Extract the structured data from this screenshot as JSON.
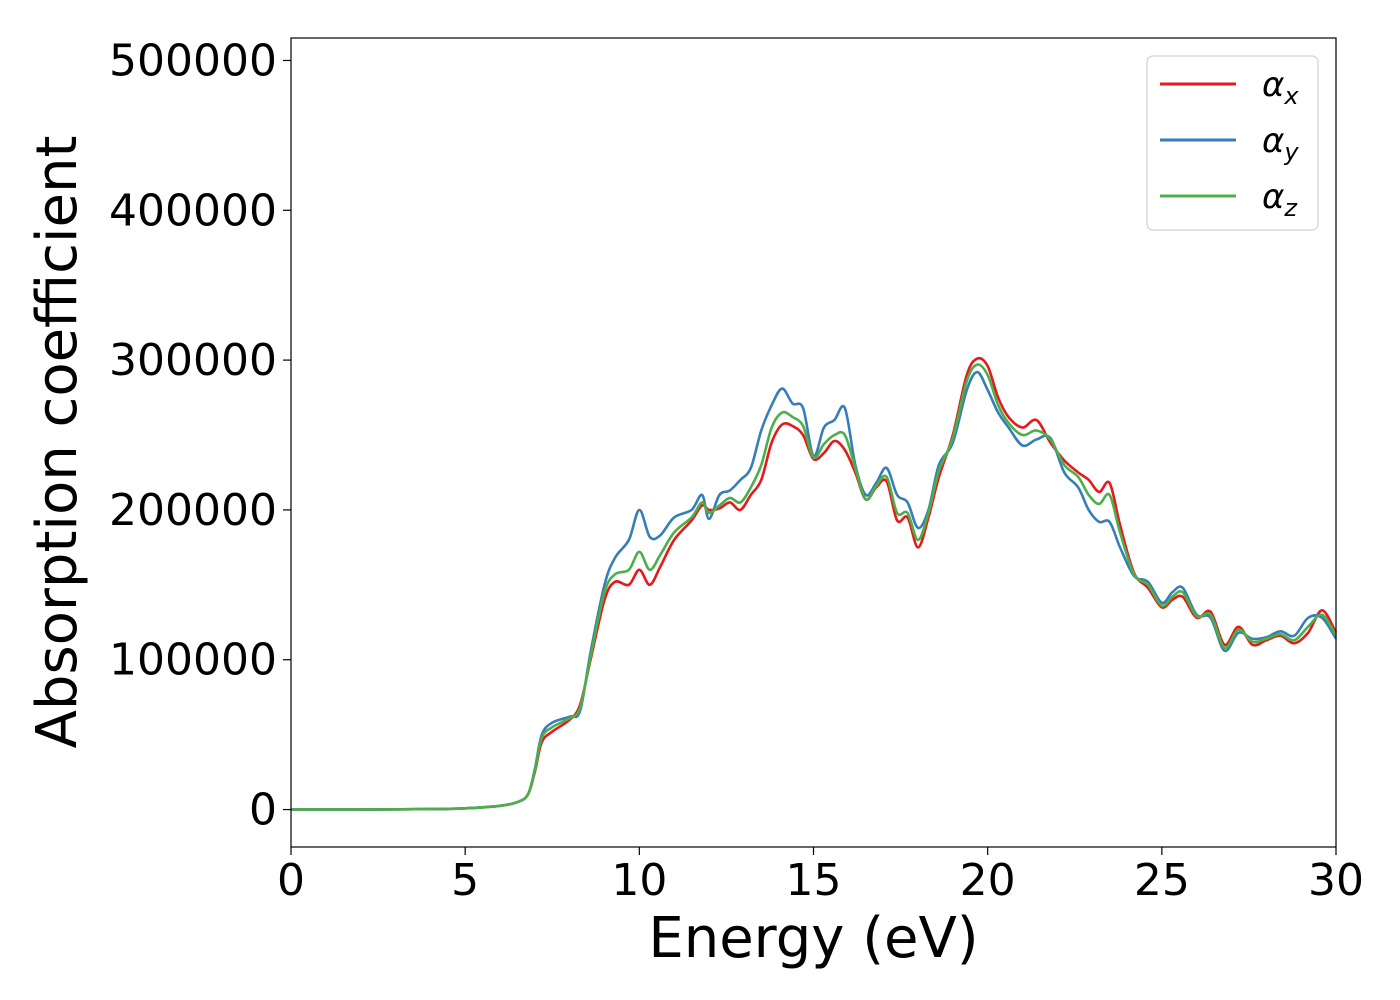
{
  "chart_data": {
    "type": "line",
    "title": "",
    "xlabel": "Energy (eV)",
    "ylabel": "Absorption coefficient",
    "xlim": [
      0,
      30
    ],
    "ylim": [
      -25000,
      515000
    ],
    "xticks": [
      0,
      5,
      10,
      15,
      20,
      25,
      30
    ],
    "xtick_labels": [
      "0",
      "5",
      "10",
      "15",
      "20",
      "25",
      "30"
    ],
    "yticks": [
      0,
      100000,
      200000,
      300000,
      400000,
      500000
    ],
    "ytick_labels": [
      "0",
      "100000",
      "200000",
      "300000",
      "400000",
      "500000"
    ],
    "grid": false,
    "legend_position": "top-right",
    "series": [
      {
        "name": "αx",
        "legend_base": "α",
        "legend_sub": "x",
        "color": "#e41a1c",
        "x": [
          0,
          2,
          4,
          5,
          6,
          6.5,
          6.8,
          7.0,
          7.2,
          7.5,
          8.0,
          8.3,
          8.6,
          9.0,
          9.3,
          9.7,
          10.0,
          10.3,
          10.6,
          11.0,
          11.5,
          11.8,
          12.0,
          12.3,
          12.6,
          12.9,
          13.2,
          13.5,
          13.8,
          14.1,
          14.4,
          14.7,
          15.0,
          15.3,
          15.6,
          15.9,
          16.2,
          16.5,
          16.8,
          17.1,
          17.4,
          17.7,
          18.0,
          18.3,
          18.6,
          19.0,
          19.4,
          19.7,
          20.0,
          20.3,
          20.6,
          21.0,
          21.4,
          21.8,
          22.2,
          22.6,
          22.9,
          23.2,
          23.5,
          23.8,
          24.2,
          24.6,
          25.0,
          25.3,
          25.6,
          26.0,
          26.4,
          26.8,
          27.2,
          27.6,
          28.0,
          28.4,
          28.8,
          29.2,
          29.6,
          30.0
        ],
        "values": [
          0,
          0,
          300,
          800,
          2500,
          5000,
          10000,
          25000,
          45000,
          52000,
          60000,
          70000,
          100000,
          140000,
          152000,
          150000,
          160000,
          150000,
          162000,
          180000,
          193000,
          203000,
          200000,
          201000,
          205000,
          200000,
          210000,
          220000,
          245000,
          257000,
          256000,
          250000,
          234000,
          238000,
          246000,
          240000,
          225000,
          207000,
          215000,
          219000,
          193000,
          195000,
          175000,
          195000,
          222000,
          250000,
          290000,
          301000,
          296000,
          275000,
          262000,
          255000,
          260000,
          245000,
          233000,
          225000,
          220000,
          212000,
          218000,
          190000,
          158000,
          148000,
          135000,
          140000,
          142000,
          128000,
          132000,
          110000,
          122000,
          110000,
          113000,
          116000,
          111000,
          118000,
          133000,
          118000
        ]
      },
      {
        "name": "αy",
        "legend_base": "α",
        "legend_sub": "y",
        "color": "#377eb8",
        "x": [
          0,
          2,
          4,
          5,
          6,
          6.5,
          6.8,
          7.0,
          7.2,
          7.5,
          8.0,
          8.3,
          8.6,
          9.0,
          9.3,
          9.7,
          10.0,
          10.3,
          10.6,
          11.0,
          11.5,
          11.8,
          12.0,
          12.3,
          12.6,
          12.9,
          13.2,
          13.5,
          13.8,
          14.1,
          14.4,
          14.7,
          15.0,
          15.3,
          15.6,
          15.9,
          16.2,
          16.5,
          16.8,
          17.1,
          17.4,
          17.7,
          18.0,
          18.3,
          18.6,
          19.0,
          19.4,
          19.7,
          20.0,
          20.3,
          20.6,
          21.0,
          21.4,
          21.8,
          22.2,
          22.6,
          22.9,
          23.2,
          23.5,
          23.8,
          24.2,
          24.6,
          25.0,
          25.3,
          25.6,
          26.0,
          26.4,
          26.8,
          27.2,
          27.6,
          28.0,
          28.4,
          28.8,
          29.2,
          29.6,
          30.0
        ],
        "values": [
          0,
          0,
          300,
          800,
          2500,
          5000,
          10000,
          27000,
          50000,
          58000,
          62000,
          66000,
          105000,
          150000,
          168000,
          180000,
          200000,
          182000,
          183000,
          195000,
          200000,
          210000,
          194000,
          210000,
          213000,
          220000,
          228000,
          253000,
          270000,
          281000,
          271000,
          268000,
          236000,
          255000,
          260000,
          268000,
          230000,
          210000,
          218000,
          228000,
          210000,
          205000,
          188000,
          200000,
          230000,
          245000,
          280000,
          292000,
          280000,
          265000,
          255000,
          243000,
          247000,
          248000,
          225000,
          215000,
          200000,
          192000,
          192000,
          175000,
          156000,
          152000,
          138000,
          145000,
          148000,
          130000,
          128000,
          106000,
          118000,
          114000,
          115000,
          119000,
          116000,
          128000,
          128000,
          114000
        ]
      },
      {
        "name": "αz",
        "legend_base": "α",
        "legend_sub": "z",
        "color": "#4daf4a",
        "x": [
          0,
          2,
          4,
          5,
          6,
          6.5,
          6.8,
          7.0,
          7.2,
          7.5,
          8.0,
          8.3,
          8.6,
          9.0,
          9.3,
          9.7,
          10.0,
          10.3,
          10.6,
          11.0,
          11.5,
          11.8,
          12.0,
          12.3,
          12.6,
          12.9,
          13.2,
          13.5,
          13.8,
          14.1,
          14.4,
          14.7,
          15.0,
          15.3,
          15.6,
          15.9,
          16.2,
          16.5,
          16.8,
          17.1,
          17.4,
          17.7,
          18.0,
          18.3,
          18.6,
          19.0,
          19.4,
          19.7,
          20.0,
          20.3,
          20.6,
          21.0,
          21.4,
          21.8,
          22.2,
          22.6,
          22.9,
          23.2,
          23.5,
          23.8,
          24.2,
          24.6,
          25.0,
          25.3,
          25.6,
          26.0,
          26.4,
          26.8,
          27.2,
          27.6,
          28.0,
          28.4,
          28.8,
          29.2,
          29.6,
          30.0
        ],
        "values": [
          0,
          0,
          300,
          800,
          2500,
          5000,
          10000,
          26000,
          48000,
          55000,
          61000,
          68000,
          102000,
          145000,
          157000,
          160000,
          172000,
          160000,
          170000,
          185000,
          195000,
          205000,
          198000,
          203000,
          208000,
          205000,
          215000,
          230000,
          255000,
          265000,
          262000,
          256000,
          235000,
          244000,
          250000,
          250000,
          228000,
          207000,
          216000,
          222000,
          198000,
          198000,
          180000,
          198000,
          226000,
          248000,
          286000,
          297000,
          290000,
          270000,
          258000,
          250000,
          253000,
          247000,
          230000,
          222000,
          210000,
          204000,
          210000,
          185000,
          157000,
          150000,
          136000,
          142000,
          145000,
          129000,
          130000,
          108000,
          120000,
          112000,
          114000,
          117000,
          113000,
          122000,
          130000,
          116000
        ]
      }
    ]
  }
}
